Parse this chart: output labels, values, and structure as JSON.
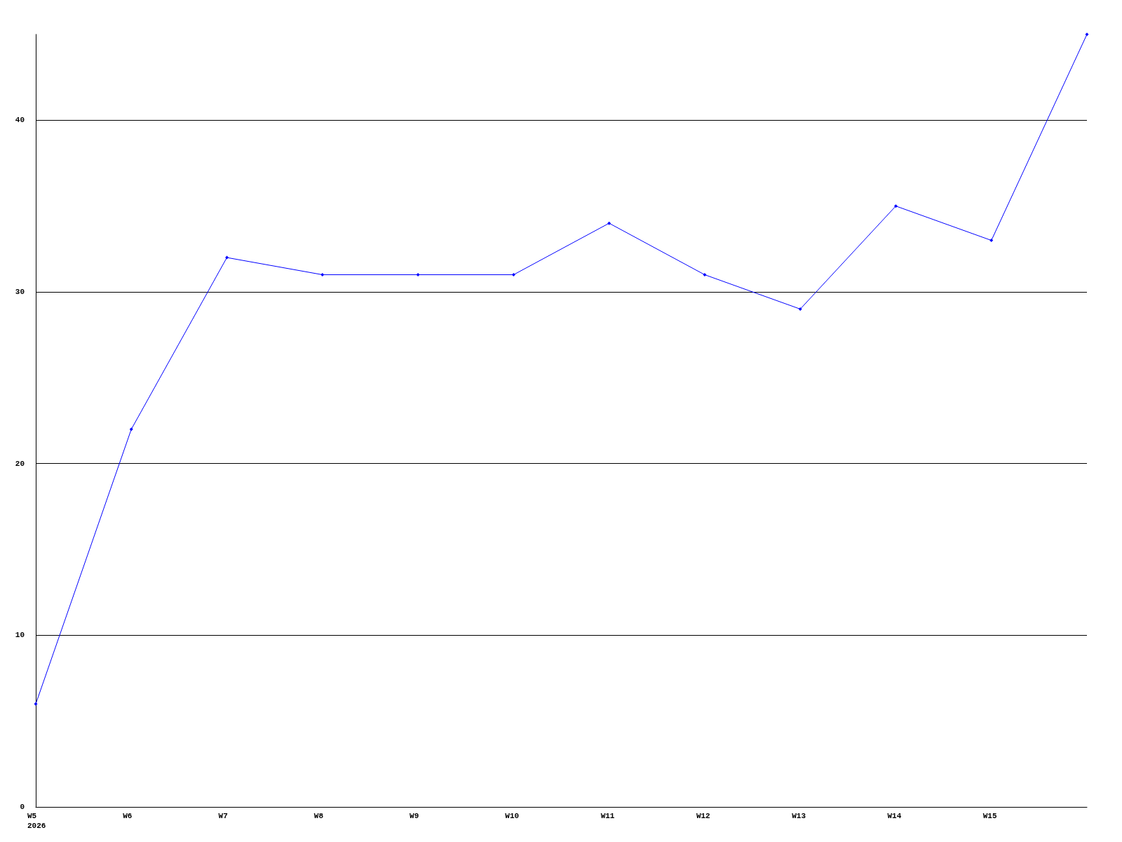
{
  "chart_data": {
    "type": "line",
    "categories": [
      "W5\n2026",
      "W6",
      "W7",
      "W8",
      "W9",
      "W10",
      "W11",
      "W12",
      "W13",
      "W14",
      "W15",
      null
    ],
    "series": [
      {
        "color": "#0000ff",
        "values": [
          6,
          22,
          32,
          31,
          31,
          31,
          34,
          31,
          29,
          35,
          33,
          45
        ]
      }
    ],
    "ylim": [
      0,
      45
    ],
    "yticks": [
      0,
      10,
      20,
      30,
      40
    ],
    "grid": "y",
    "marker": "diamond",
    "line_style": "solid"
  }
}
